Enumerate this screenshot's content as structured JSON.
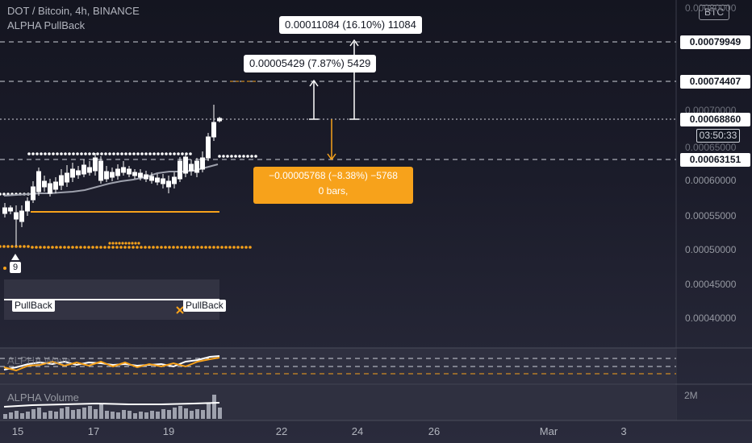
{
  "header": {
    "symbol_line": "DOT / Bitcoin, 4h, BINANCE",
    "indicator_line": "ALPHA PullBack"
  },
  "currency_badge": "BTC",
  "price_axis": {
    "ticks": [
      "0.00060000",
      "0.00055000",
      "0.00050000",
      "0.00045000",
      "0.00040000"
    ],
    "partial_tick_top": "0.00080000",
    "partial_tick_mid_1": "0.00070000",
    "partial_tick_mid_2": "0.00065000",
    "labels": {
      "level_1": "0.00079949",
      "level_2": "0.00074407",
      "current_price": "0.00068860",
      "countdown": "03:50:33",
      "level_4": "0.00063151"
    }
  },
  "measurements": {
    "up_large": "0.00011084 (16.10%) 11084",
    "up_small": "0.00005429 (7.87%) 5429",
    "down_line1": "−0.00005768 (−8.38%) −5768",
    "down_line2": "0 bars,"
  },
  "signals": {
    "count_badge": "9",
    "pullback_1": "PullBack",
    "pullback_2": "PullBack"
  },
  "oscillator_pane": {
    "title": "ALPHA Wave"
  },
  "volume_pane": {
    "title": "ALPHA Volume",
    "scale_label": "2M"
  },
  "time_axis": [
    "15",
    "17",
    "19",
    "22",
    "24",
    "26",
    "Mar",
    "3"
  ],
  "colors": {
    "accent_orange": "#f7a21b",
    "candle_up": "#ffffff",
    "dashed_level": "#cfd2da",
    "ma_line": "#9ea1ad"
  }
}
